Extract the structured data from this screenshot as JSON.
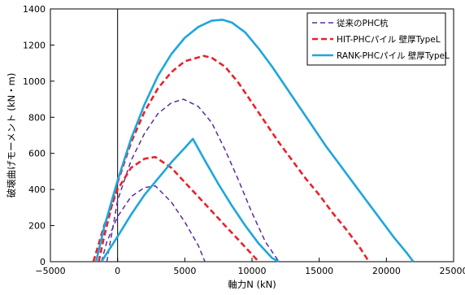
{
  "chart_data": {
    "type": "line",
    "title": "",
    "xlabel": "軸力N (kN)",
    "ylabel": "破壊曲げモーメント (kN・m)",
    "xlim": [
      -5000,
      25000
    ],
    "ylim": [
      0,
      1400
    ],
    "xticks": [
      -5000,
      0,
      5000,
      10000,
      15000,
      20000,
      25000
    ],
    "yticks": [
      0,
      200,
      400,
      600,
      800,
      1000,
      1200,
      1400
    ],
    "xtick_labels": [
      "−5000",
      "0",
      "5000",
      "10000",
      "15000",
      "20000",
      "25000"
    ],
    "ytick_labels": [
      "0",
      "200",
      "400",
      "600",
      "800",
      "1000",
      "1200",
      "1400"
    ],
    "grid": "none",
    "legend_position": "top-right",
    "series": [
      {
        "name": "従来のPHC杭",
        "color": "#5a2ca0",
        "style": "dashed",
        "width": "thin",
        "curves": [
          [
            [
              -1200,
              0
            ],
            [
              -800,
              110
            ],
            [
              0,
              250
            ],
            [
              1000,
              360
            ],
            [
              2000,
              410
            ],
            [
              2800,
              420
            ],
            [
              4000,
              330
            ],
            [
              5000,
              220
            ],
            [
              6000,
              90
            ],
            [
              6500,
              0
            ]
          ],
          [
            [
              -800,
              0
            ],
            [
              0,
              340
            ],
            [
              1000,
              560
            ],
            [
              2000,
              710
            ],
            [
              3000,
              820
            ],
            [
              4000,
              880
            ],
            [
              4900,
              900
            ],
            [
              6000,
              860
            ],
            [
              7000,
              770
            ],
            [
              8000,
              620
            ],
            [
              9000,
              450
            ],
            [
              10000,
              270
            ],
            [
              11000,
              110
            ],
            [
              12000,
              0
            ]
          ]
        ]
      },
      {
        "name": "HIT-PHCパイル 壁厚TypeL",
        "color": "#e8222b",
        "style": "dashed",
        "width": "thick",
        "curves": [
          [
            [
              -1800,
              0
            ],
            [
              -1000,
              200
            ],
            [
              0,
              400
            ],
            [
              1000,
              520
            ],
            [
              2000,
              570
            ],
            [
              2800,
              580
            ],
            [
              4000,
              520
            ],
            [
              5000,
              440
            ],
            [
              6000,
              360
            ],
            [
              7000,
              280
            ],
            [
              8000,
              200
            ],
            [
              9000,
              120
            ],
            [
              10000,
              40
            ],
            [
              10500,
              0
            ]
          ],
          [
            [
              -1400,
              0
            ],
            [
              -1000,
              140
            ],
            [
              0,
              440
            ],
            [
              1000,
              660
            ],
            [
              2000,
              830
            ],
            [
              3000,
              960
            ],
            [
              4000,
              1050
            ],
            [
              5000,
              1110
            ],
            [
              6400,
              1140
            ],
            [
              7000,
              1130
            ],
            [
              8000,
              1080
            ],
            [
              9000,
              990
            ],
            [
              10000,
              880
            ],
            [
              11000,
              770
            ],
            [
              12000,
              660
            ],
            [
              13000,
              560
            ],
            [
              14000,
              460
            ],
            [
              15000,
              370
            ],
            [
              16000,
              270
            ],
            [
              17000,
              180
            ],
            [
              18000,
              80
            ],
            [
              18700,
              0
            ]
          ]
        ]
      },
      {
        "name": "RANK-PHCパイル 壁厚TypeL",
        "color": "#1ea6dc",
        "style": "solid",
        "width": "thick",
        "curves": [
          [
            [
              -1200,
              0
            ],
            [
              0,
              140
            ],
            [
              1000,
              260
            ],
            [
              2000,
              370
            ],
            [
              3000,
              460
            ],
            [
              4000,
              550
            ],
            [
              5000,
              630
            ],
            [
              5600,
              680
            ],
            [
              6500,
              560
            ],
            [
              7500,
              430
            ],
            [
              8500,
              310
            ],
            [
              9500,
              200
            ],
            [
              10500,
              100
            ],
            [
              11500,
              20
            ],
            [
              12000,
              0
            ]
          ],
          [
            [
              -1600,
              0
            ],
            [
              -1000,
              190
            ],
            [
              0,
              450
            ],
            [
              1000,
              680
            ],
            [
              2000,
              870
            ],
            [
              3000,
              1030
            ],
            [
              4000,
              1150
            ],
            [
              5000,
              1240
            ],
            [
              6000,
              1300
            ],
            [
              7000,
              1335
            ],
            [
              7800,
              1340
            ],
            [
              8500,
              1325
            ],
            [
              9500,
              1270
            ],
            [
              10500,
              1180
            ],
            [
              11500,
              1080
            ],
            [
              12500,
              970
            ],
            [
              13500,
              860
            ],
            [
              14500,
              750
            ],
            [
              15500,
              640
            ],
            [
              16500,
              540
            ],
            [
              17500,
              440
            ],
            [
              18500,
              340
            ],
            [
              19500,
              240
            ],
            [
              20500,
              140
            ],
            [
              21500,
              50
            ],
            [
              22000,
              0
            ]
          ]
        ]
      }
    ]
  }
}
